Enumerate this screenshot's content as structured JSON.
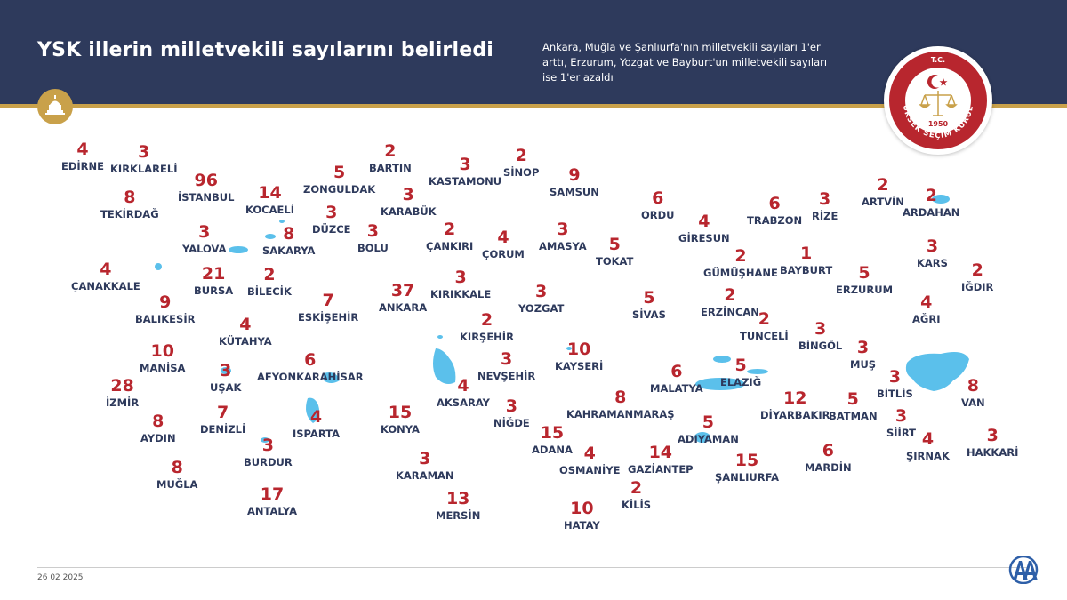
{
  "header": {
    "title": "YSK illerin milletvekili sayılarını belirledi",
    "subtitle": "Ankara, Muğla ve Şanlıurfa'nın milletvekili sayıları 1'er arttı, Erzurum, Yozgat ve Bayburt'un milletvekili sayıları ise 1'er azaldı"
  },
  "emblem": {
    "top_text": "T.C.",
    "ring_text": "YÜKSEK SEÇİM KURULU",
    "year": "1950"
  },
  "colors": {
    "header_bg": "#2e3a5c",
    "accent_gold": "#c9a14a",
    "number_red": "#b8262e",
    "label_navy": "#2e3a5c",
    "water_blue": "#5bc0eb"
  },
  "footer": {
    "date": "26 02 2025",
    "brand_icon": "aa-logo-icon"
  },
  "provinces": [
    {
      "name": "EDİRNE",
      "seats": "4"
    },
    {
      "name": "KIRKLARELİ",
      "seats": "3"
    },
    {
      "name": "İSTANBUL",
      "seats": "96"
    },
    {
      "name": "TEKİRDAĞ",
      "seats": "8"
    },
    {
      "name": "KOCAELİ",
      "seats": "14"
    },
    {
      "name": "ZONGULDAK",
      "seats": "5"
    },
    {
      "name": "BARTIN",
      "seats": "2"
    },
    {
      "name": "KASTAMONU",
      "seats": "3"
    },
    {
      "name": "SİNOP",
      "seats": "2"
    },
    {
      "name": "SAMSUN",
      "seats": "9"
    },
    {
      "name": "KARABÜK",
      "seats": "3"
    },
    {
      "name": "DÜZCE",
      "seats": "3"
    },
    {
      "name": "YALOVA",
      "seats": "3"
    },
    {
      "name": "SAKARYA",
      "seats": "8"
    },
    {
      "name": "BOLU",
      "seats": "3"
    },
    {
      "name": "ÇANKIRI",
      "seats": "2"
    },
    {
      "name": "ÇORUM",
      "seats": "4"
    },
    {
      "name": "AMASYA",
      "seats": "3"
    },
    {
      "name": "TOKAT",
      "seats": "5"
    },
    {
      "name": "ORDU",
      "seats": "6"
    },
    {
      "name": "GİRESUN",
      "seats": "4"
    },
    {
      "name": "TRABZON",
      "seats": "6"
    },
    {
      "name": "RİZE",
      "seats": "3"
    },
    {
      "name": "ARTVİN",
      "seats": "2"
    },
    {
      "name": "ARDAHAN",
      "seats": "2"
    },
    {
      "name": "GÜMÜŞHANE",
      "seats": "2"
    },
    {
      "name": "BAYBURT",
      "seats": "1"
    },
    {
      "name": "KARS",
      "seats": "3"
    },
    {
      "name": "IĞDIR",
      "seats": "2"
    },
    {
      "name": "ÇANAKKALE",
      "seats": "4"
    },
    {
      "name": "BURSA",
      "seats": "21"
    },
    {
      "name": "BİLECİK",
      "seats": "2"
    },
    {
      "name": "BALIKESİR",
      "seats": "9"
    },
    {
      "name": "ESKİŞEHİR",
      "seats": "7"
    },
    {
      "name": "ANKARA",
      "seats": "37"
    },
    {
      "name": "KIRIKKALE",
      "seats": "3"
    },
    {
      "name": "YOZGAT",
      "seats": "3"
    },
    {
      "name": "SİVAS",
      "seats": "5"
    },
    {
      "name": "ERZİNCAN",
      "seats": "2"
    },
    {
      "name": "ERZURUM",
      "seats": "5"
    },
    {
      "name": "AĞRI",
      "seats": "4"
    },
    {
      "name": "KÜTAHYA",
      "seats": "4"
    },
    {
      "name": "KIRŞEHİR",
      "seats": "2"
    },
    {
      "name": "TUNCELİ",
      "seats": "2"
    },
    {
      "name": "BİNGÖL",
      "seats": "3"
    },
    {
      "name": "MANİSA",
      "seats": "10"
    },
    {
      "name": "KAYSERİ",
      "seats": "10"
    },
    {
      "name": "AFYONKARAHİSAR",
      "seats": "6"
    },
    {
      "name": "UŞAK",
      "seats": "3"
    },
    {
      "name": "NEVŞEHİR",
      "seats": "3"
    },
    {
      "name": "MUŞ",
      "seats": "3"
    },
    {
      "name": "ELAZIĞ",
      "seats": "5"
    },
    {
      "name": "MALATYA",
      "seats": "6"
    },
    {
      "name": "İZMİR",
      "seats": "28"
    },
    {
      "name": "AKSARAY",
      "seats": "4"
    },
    {
      "name": "BİTLİS",
      "seats": "3"
    },
    {
      "name": "VAN",
      "seats": "8"
    },
    {
      "name": "KAHRAMANMARAŞ",
      "seats": "8"
    },
    {
      "name": "DİYARBAKIR",
      "seats": "12"
    },
    {
      "name": "BATMAN",
      "seats": "5"
    },
    {
      "name": "DENİZLİ",
      "seats": "7"
    },
    {
      "name": "ISPARTA",
      "seats": "4"
    },
    {
      "name": "KONYA",
      "seats": "15"
    },
    {
      "name": "NİĞDE",
      "seats": "3"
    },
    {
      "name": "AYDIN",
      "seats": "8"
    },
    {
      "name": "SİİRT",
      "seats": "3"
    },
    {
      "name": "ADIYAMAN",
      "seats": "5"
    },
    {
      "name": "ADANA",
      "seats": "15"
    },
    {
      "name": "BURDUR",
      "seats": "3"
    },
    {
      "name": "OSMANİYE",
      "seats": "4"
    },
    {
      "name": "GAZİANTEP",
      "seats": "14"
    },
    {
      "name": "ŞIRNAK",
      "seats": "4"
    },
    {
      "name": "HAKKARİ",
      "seats": "3"
    },
    {
      "name": "ŞANLIURFA",
      "seats": "15"
    },
    {
      "name": "MARDİN",
      "seats": "6"
    },
    {
      "name": "KARAMAN",
      "seats": "3"
    },
    {
      "name": "MUĞLA",
      "seats": "8"
    },
    {
      "name": "ANTALYA",
      "seats": "17"
    },
    {
      "name": "KİLİS",
      "seats": "2"
    },
    {
      "name": "MERSİN",
      "seats": "13"
    },
    {
      "name": "HATAY",
      "seats": "10"
    }
  ]
}
